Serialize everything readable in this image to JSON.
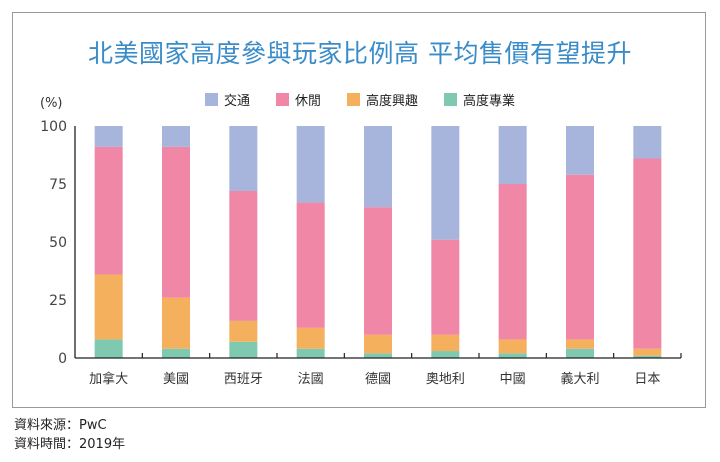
{
  "chart_data": {
    "type": "bar",
    "stacked": true,
    "title": "北美國家高度參與玩家比例高 平均售價有望提升",
    "ylabel": "(%)",
    "ylim": [
      0,
      100
    ],
    "yticks": [
      "0",
      "25",
      "50",
      "75",
      "100"
    ],
    "grid": false,
    "legend_position": "top",
    "categories": [
      "加拿大",
      "美國",
      "西班牙",
      "法國",
      "德國",
      "奧地利",
      "中國",
      "義大利",
      "日本"
    ],
    "series": [
      {
        "name": "高度專業",
        "color": "#80c9b1",
        "values": [
          8,
          4,
          7,
          4,
          2,
          3,
          2,
          4,
          1
        ]
      },
      {
        "name": "高度興趣",
        "color": "#f5b05e",
        "values": [
          28,
          22,
          9,
          9,
          8,
          7,
          6,
          4,
          3
        ]
      },
      {
        "name": "休閒",
        "color": "#f087a6",
        "values": [
          55,
          65,
          56,
          54,
          55,
          41,
          67,
          71,
          82
        ]
      },
      {
        "name": "交通",
        "color": "#a7b4dc",
        "values": [
          9,
          9,
          28,
          33,
          35,
          49,
          25,
          21,
          14
        ]
      }
    ],
    "legend_order": [
      "交通",
      "休閒",
      "高度興趣",
      "高度專業"
    ]
  },
  "footer": {
    "source": "資料來源：PwC",
    "time": "資料時間：2019年"
  }
}
